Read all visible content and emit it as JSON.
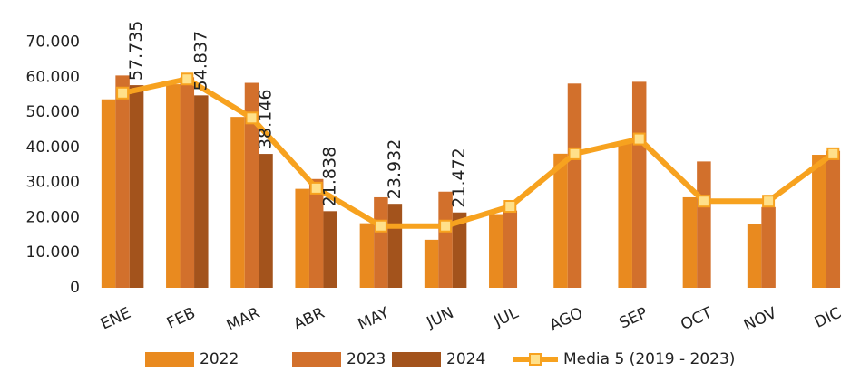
{
  "chart_data": {
    "type": "bar",
    "categories": [
      "ENE",
      "FEB",
      "MAR",
      "ABR",
      "MAY",
      "JUN",
      "JUL",
      "AGO",
      "SEP",
      "OCT",
      "NOV",
      "DIC"
    ],
    "series": [
      {
        "name": "2022",
        "color": "#e98a1f",
        "values": [
          53700,
          58000,
          48700,
          28200,
          18400,
          13700,
          21000,
          38200,
          41600,
          25800,
          18200,
          37900
        ]
      },
      {
        "name": "2023",
        "color": "#d2702c",
        "values": [
          60500,
          60000,
          58400,
          31000,
          25800,
          27400,
          22000,
          58200,
          58700,
          36000,
          23000,
          39000
        ]
      },
      {
        "name": "2024",
        "color": "#a3531c",
        "values": [
          57735,
          54837,
          38146,
          21838,
          23932,
          21472,
          null,
          null,
          null,
          null,
          null,
          null
        ],
        "value_labels": [
          "57.735",
          "54.837",
          "38.146",
          "21.838",
          "23.932",
          "21.472",
          null,
          null,
          null,
          null,
          null,
          null
        ]
      },
      {
        "name": "Media 5 (2019 - 2023)",
        "type": "line",
        "color": "#f7a21f",
        "marker_color": "#ffe08a",
        "values": [
          55500,
          59500,
          48400,
          28400,
          17600,
          17600,
          23200,
          38200,
          42400,
          24700,
          24700,
          38200
        ]
      }
    ],
    "ylim": [
      0,
      82000
    ],
    "yticks": [
      0,
      {
        "value": 10000,
        "label": "10.000"
      },
      {
        "value": 20000,
        "label": "20.000"
      },
      {
        "value": 30000,
        "label": "30.000"
      },
      {
        "value": 40000,
        "label": "40.000"
      },
      {
        "value": 50000,
        "label": "50.000"
      },
      {
        "value": 60000,
        "label": "60.000"
      },
      {
        "value": 70000,
        "label": "70.000"
      }
    ],
    "legend": "bottom"
  }
}
